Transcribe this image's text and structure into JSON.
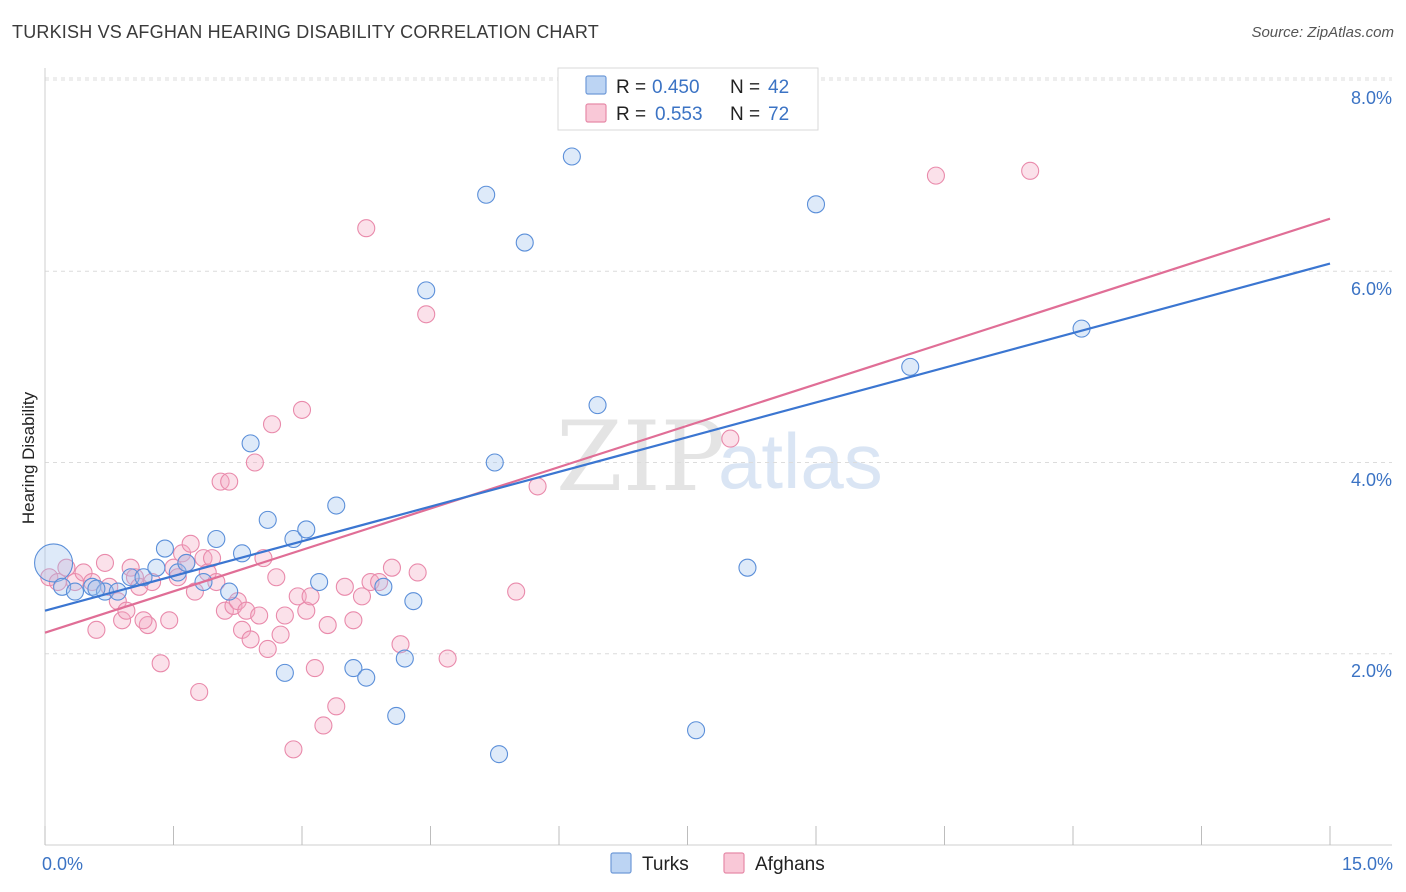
{
  "header": {
    "title": "TURKISH VS AFGHAN HEARING DISABILITY CORRELATION CHART",
    "source": "Source: ZipAtlas.com"
  },
  "legend": {
    "r_label": "R =",
    "n_label": "N =",
    "turks": {
      "r": "0.450",
      "n": "42"
    },
    "afghans": {
      "r": "0.553",
      "n": "72"
    }
  },
  "bottom_legend": {
    "turks": "Turks",
    "afghans": "Afghans"
  },
  "watermark": {
    "zip": "ZIP",
    "atlas": "atlas"
  },
  "chart_data": {
    "type": "scatter",
    "title": "TURKISH VS AFGHAN HEARING DISABILITY CORRELATION CHART",
    "xlabel": "",
    "ylabel": "Hearing Disability",
    "xlim": [
      0,
      15
    ],
    "ylim": [
      0,
      8.4
    ],
    "x_tick_labels": [
      "0.0%",
      "15.0%"
    ],
    "y_ticks": [
      2,
      4,
      6,
      8
    ],
    "y_tick_labels": [
      "2.0%",
      "4.0%",
      "6.0%",
      "8.0%"
    ],
    "grid": true,
    "legend_position": "top-center",
    "colors": {
      "turks": "#5b8fd9",
      "afghans": "#e97fa2",
      "turks_line": "#3b76d1",
      "afghans_line": "#e06e96"
    },
    "series": [
      {
        "name": "Turks",
        "r": 0.45,
        "n": 42,
        "trend": {
          "x0": 0,
          "y0": 2.45,
          "x1": 15,
          "y1": 6.08
        },
        "points": [
          {
            "x": 0.1,
            "y": 2.95,
            "big": true
          },
          {
            "x": 0.2,
            "y": 2.7
          },
          {
            "x": 0.35,
            "y": 2.65
          },
          {
            "x": 0.55,
            "y": 2.7
          },
          {
            "x": 0.7,
            "y": 2.65
          },
          {
            "x": 0.85,
            "y": 2.65
          },
          {
            "x": 1.0,
            "y": 2.8
          },
          {
            "x": 1.15,
            "y": 2.8
          },
          {
            "x": 1.3,
            "y": 2.9
          },
          {
            "x": 1.4,
            "y": 3.1
          },
          {
            "x": 1.55,
            "y": 2.85
          },
          {
            "x": 1.65,
            "y": 2.95
          },
          {
            "x": 1.85,
            "y": 2.75
          },
          {
            "x": 2.0,
            "y": 3.2
          },
          {
            "x": 2.15,
            "y": 2.65
          },
          {
            "x": 2.3,
            "y": 3.05
          },
          {
            "x": 2.4,
            "y": 4.2
          },
          {
            "x": 2.6,
            "y": 3.4
          },
          {
            "x": 2.8,
            "y": 1.8
          },
          {
            "x": 2.9,
            "y": 3.2
          },
          {
            "x": 3.05,
            "y": 3.3
          },
          {
            "x": 3.2,
            "y": 2.75
          },
          {
            "x": 3.4,
            "y": 3.55
          },
          {
            "x": 3.6,
            "y": 1.85
          },
          {
            "x": 3.75,
            "y": 1.75
          },
          {
            "x": 3.95,
            "y": 2.7
          },
          {
            "x": 4.1,
            "y": 1.35
          },
          {
            "x": 4.2,
            "y": 1.95
          },
          {
            "x": 4.3,
            "y": 2.55
          },
          {
            "x": 4.45,
            "y": 5.8
          },
          {
            "x": 5.15,
            "y": 6.8
          },
          {
            "x": 5.25,
            "y": 4.0
          },
          {
            "x": 5.3,
            "y": 0.95
          },
          {
            "x": 5.6,
            "y": 6.3
          },
          {
            "x": 6.15,
            "y": 7.2
          },
          {
            "x": 6.45,
            "y": 4.6
          },
          {
            "x": 7.6,
            "y": 1.2
          },
          {
            "x": 8.2,
            "y": 2.9
          },
          {
            "x": 9.0,
            "y": 6.7
          },
          {
            "x": 10.1,
            "y": 5.0
          },
          {
            "x": 12.1,
            "y": 5.4
          },
          {
            "x": 0.6,
            "y": 2.68
          }
        ]
      },
      {
        "name": "Afghans",
        "r": 0.553,
        "n": 72,
        "trend": {
          "x0": 0,
          "y0": 2.22,
          "x1": 15,
          "y1": 6.55
        },
        "points": [
          {
            "x": 0.05,
            "y": 2.8
          },
          {
            "x": 0.15,
            "y": 2.75
          },
          {
            "x": 0.25,
            "y": 2.9
          },
          {
            "x": 0.35,
            "y": 2.75
          },
          {
            "x": 0.45,
            "y": 2.85
          },
          {
            "x": 0.55,
            "y": 2.75
          },
          {
            "x": 0.6,
            "y": 2.25
          },
          {
            "x": 0.7,
            "y": 2.95
          },
          {
            "x": 0.75,
            "y": 2.7
          },
          {
            "x": 0.85,
            "y": 2.55
          },
          {
            "x": 0.9,
            "y": 2.35
          },
          {
            "x": 0.95,
            "y": 2.45
          },
          {
            "x": 1.0,
            "y": 2.9
          },
          {
            "x": 1.05,
            "y": 2.8
          },
          {
            "x": 1.1,
            "y": 2.7
          },
          {
            "x": 1.2,
            "y": 2.3
          },
          {
            "x": 1.25,
            "y": 2.75
          },
          {
            "x": 1.35,
            "y": 1.9
          },
          {
            "x": 1.45,
            "y": 2.35
          },
          {
            "x": 1.5,
            "y": 2.9
          },
          {
            "x": 1.55,
            "y": 2.8
          },
          {
            "x": 1.6,
            "y": 3.05
          },
          {
            "x": 1.65,
            "y": 2.95
          },
          {
            "x": 1.7,
            "y": 3.15
          },
          {
            "x": 1.75,
            "y": 2.65
          },
          {
            "x": 1.8,
            "y": 1.6
          },
          {
            "x": 1.85,
            "y": 3.0
          },
          {
            "x": 1.9,
            "y": 2.85
          },
          {
            "x": 1.95,
            "y": 3.0
          },
          {
            "x": 2.0,
            "y": 2.75
          },
          {
            "x": 2.05,
            "y": 3.8
          },
          {
            "x": 2.1,
            "y": 2.45
          },
          {
            "x": 2.15,
            "y": 3.8
          },
          {
            "x": 2.2,
            "y": 2.5
          },
          {
            "x": 2.25,
            "y": 2.55
          },
          {
            "x": 2.3,
            "y": 2.25
          },
          {
            "x": 2.35,
            "y": 2.45
          },
          {
            "x": 2.4,
            "y": 2.15
          },
          {
            "x": 2.45,
            "y": 4.0
          },
          {
            "x": 2.5,
            "y": 2.4
          },
          {
            "x": 2.55,
            "y": 3.0
          },
          {
            "x": 2.6,
            "y": 2.05
          },
          {
            "x": 2.65,
            "y": 4.4
          },
          {
            "x": 2.7,
            "y": 2.8
          },
          {
            "x": 2.8,
            "y": 2.4
          },
          {
            "x": 2.9,
            "y": 1.0
          },
          {
            "x": 2.95,
            "y": 2.6
          },
          {
            "x": 3.0,
            "y": 4.55
          },
          {
            "x": 3.05,
            "y": 2.45
          },
          {
            "x": 3.1,
            "y": 2.6
          },
          {
            "x": 3.15,
            "y": 1.85
          },
          {
            "x": 3.25,
            "y": 1.25
          },
          {
            "x": 3.3,
            "y": 2.3
          },
          {
            "x": 3.4,
            "y": 1.45
          },
          {
            "x": 3.5,
            "y": 2.7
          },
          {
            "x": 3.6,
            "y": 2.35
          },
          {
            "x": 3.7,
            "y": 2.6
          },
          {
            "x": 3.75,
            "y": 6.45
          },
          {
            "x": 3.8,
            "y": 2.75
          },
          {
            "x": 3.9,
            "y": 2.75
          },
          {
            "x": 4.05,
            "y": 2.9
          },
          {
            "x": 4.15,
            "y": 2.1
          },
          {
            "x": 4.35,
            "y": 2.85
          },
          {
            "x": 4.45,
            "y": 5.55
          },
          {
            "x": 4.7,
            "y": 1.95
          },
          {
            "x": 5.5,
            "y": 2.65
          },
          {
            "x": 5.75,
            "y": 3.75
          },
          {
            "x": 8.0,
            "y": 4.25
          },
          {
            "x": 10.4,
            "y": 7.0
          },
          {
            "x": 11.5,
            "y": 7.05
          },
          {
            "x": 1.15,
            "y": 2.35
          },
          {
            "x": 2.75,
            "y": 2.2
          }
        ]
      }
    ]
  }
}
